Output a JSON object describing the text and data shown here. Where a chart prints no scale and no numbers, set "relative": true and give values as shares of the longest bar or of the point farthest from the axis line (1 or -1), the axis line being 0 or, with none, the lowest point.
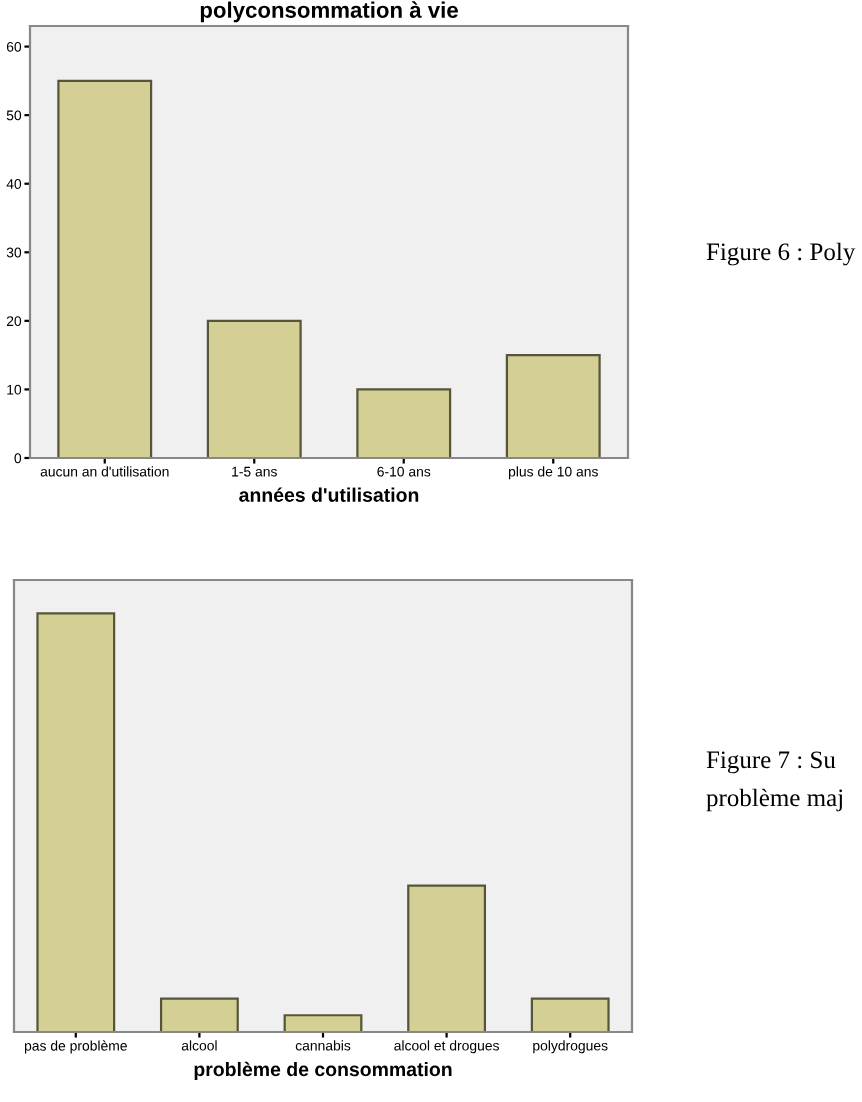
{
  "chart_data": [
    {
      "type": "bar",
      "title": "polyconsommation à vie",
      "xlabel": "années d'utilisation",
      "categories": [
        "aucun an d'utilisation",
        "1-5 ans",
        "6-10 ans",
        "plus de 10 ans"
      ],
      "values": [
        55,
        20,
        10,
        15
      ],
      "color": "#d4d095",
      "ylim": [
        0,
        63
      ],
      "yticks": [
        0,
        10,
        20,
        30,
        40,
        50,
        60
      ],
      "grid": false,
      "annotations": [
        "Figure 6 : Poly"
      ]
    },
    {
      "type": "bar",
      "xlabel": "problème de consommation",
      "categories": [
        "pas de problème",
        "alcool",
        "cannabis",
        "alcool et drogues",
        "polydrogues"
      ],
      "values": [
        1,
        0.08,
        0.04,
        0.35,
        0.08
      ],
      "relative": true,
      "color": "#d4d095",
      "grid": false,
      "annotations": [
        "Figure 7 : Su",
        "problème maj"
      ]
    }
  ]
}
